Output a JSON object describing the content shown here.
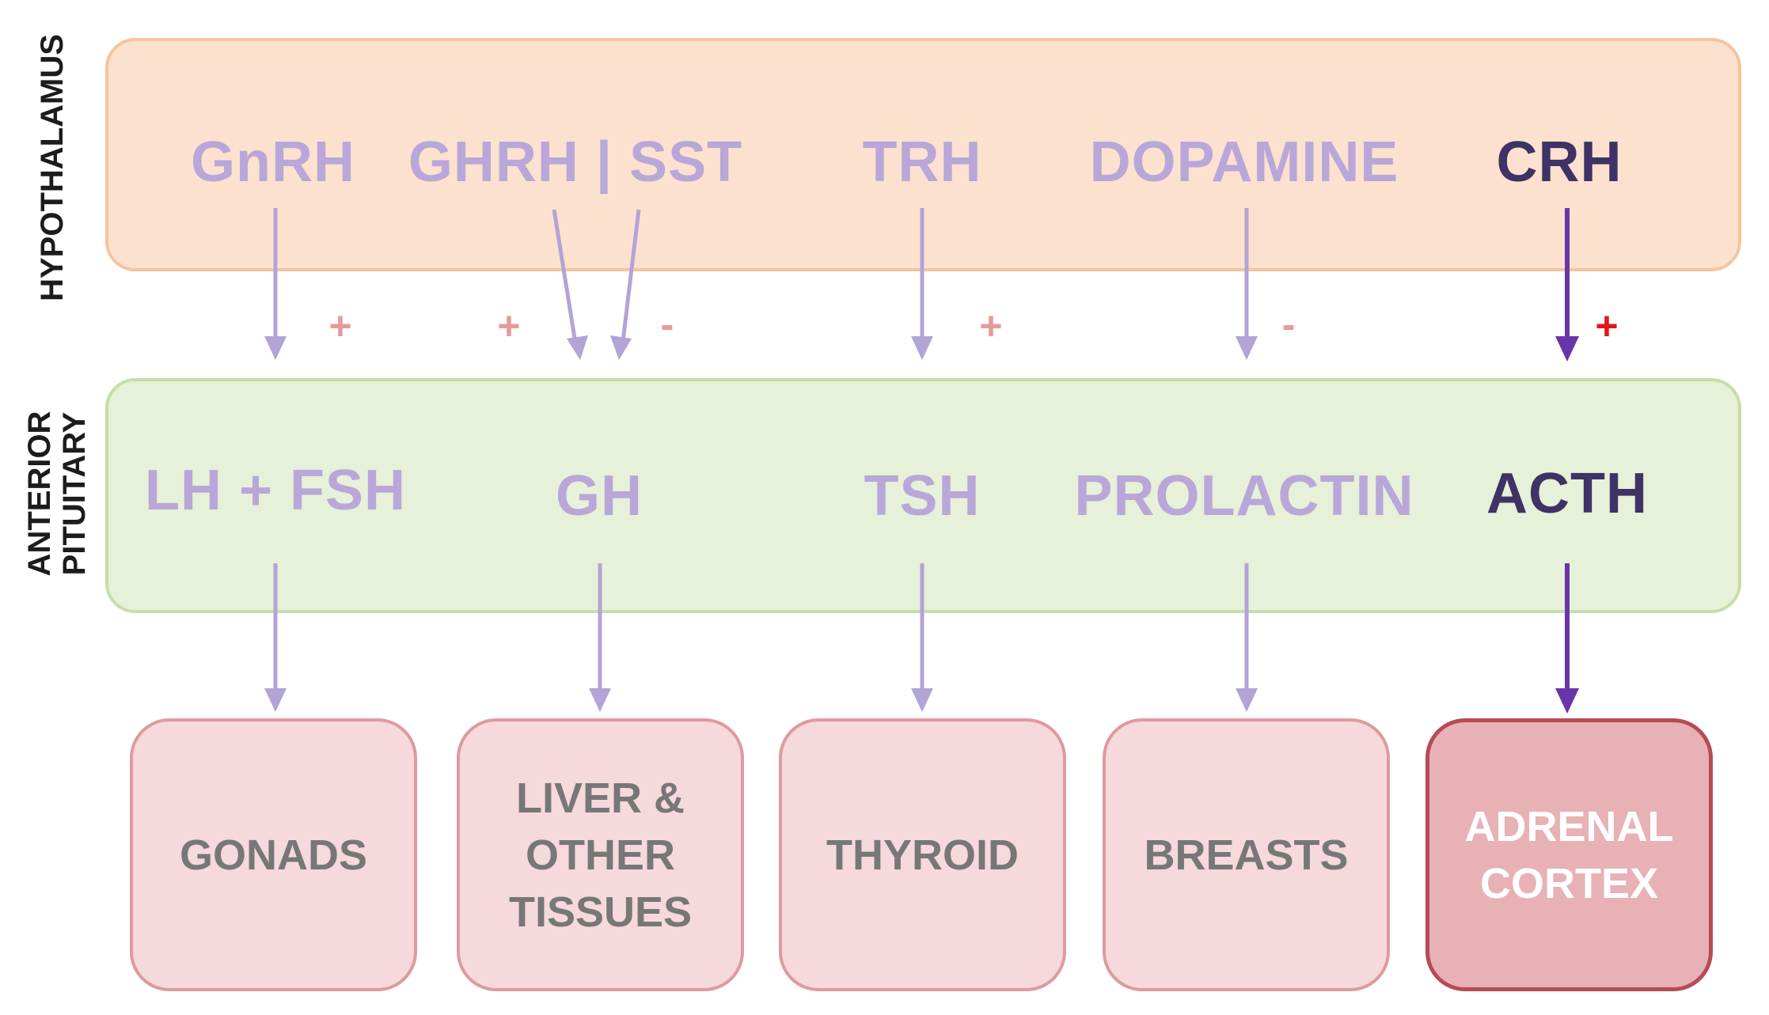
{
  "labels": {
    "hypothalamus": "HYPOTHALAMUS",
    "anterior_pituitary": "ANTERIOR\nPITUITARY"
  },
  "hypothalamus_hormones": [
    {
      "id": "gnrh",
      "label": "GnRH"
    },
    {
      "id": "ghrh-sst",
      "label": "GHRH | SST"
    },
    {
      "id": "trh",
      "label": "TRH"
    },
    {
      "id": "dopamine",
      "label": "DOPAMINE"
    },
    {
      "id": "crh",
      "label": "CRH"
    }
  ],
  "signs": [
    "+",
    "+",
    "-",
    "+",
    "-",
    "+"
  ],
  "pituitary_hormones": [
    {
      "id": "lh-fsh",
      "label": "LH + FSH"
    },
    {
      "id": "gh",
      "label": "GH"
    },
    {
      "id": "tsh",
      "label": "TSH"
    },
    {
      "id": "prolactin",
      "label": "PROLACTIN"
    },
    {
      "id": "acth",
      "label": "ACTH"
    }
  ],
  "targets": [
    {
      "id": "gonads",
      "label": "GONADS"
    },
    {
      "id": "liver",
      "label": "LIVER &\nOTHER\nTISSUES"
    },
    {
      "id": "thyroid",
      "label": "THYROID"
    },
    {
      "id": "breasts",
      "label": "BREASTS"
    },
    {
      "id": "adrenal",
      "label": "ADRENAL\nCORTEX"
    }
  ],
  "highlighted_pathway": "CRH",
  "colors": {
    "inactive_text": "#b8a7d8",
    "active_text": "#3e3266",
    "inactive_arrow": "#b3a3d6",
    "active_arrow": "#6a35a8",
    "sign": "#e79a9a",
    "active_sign": "#e01818"
  }
}
